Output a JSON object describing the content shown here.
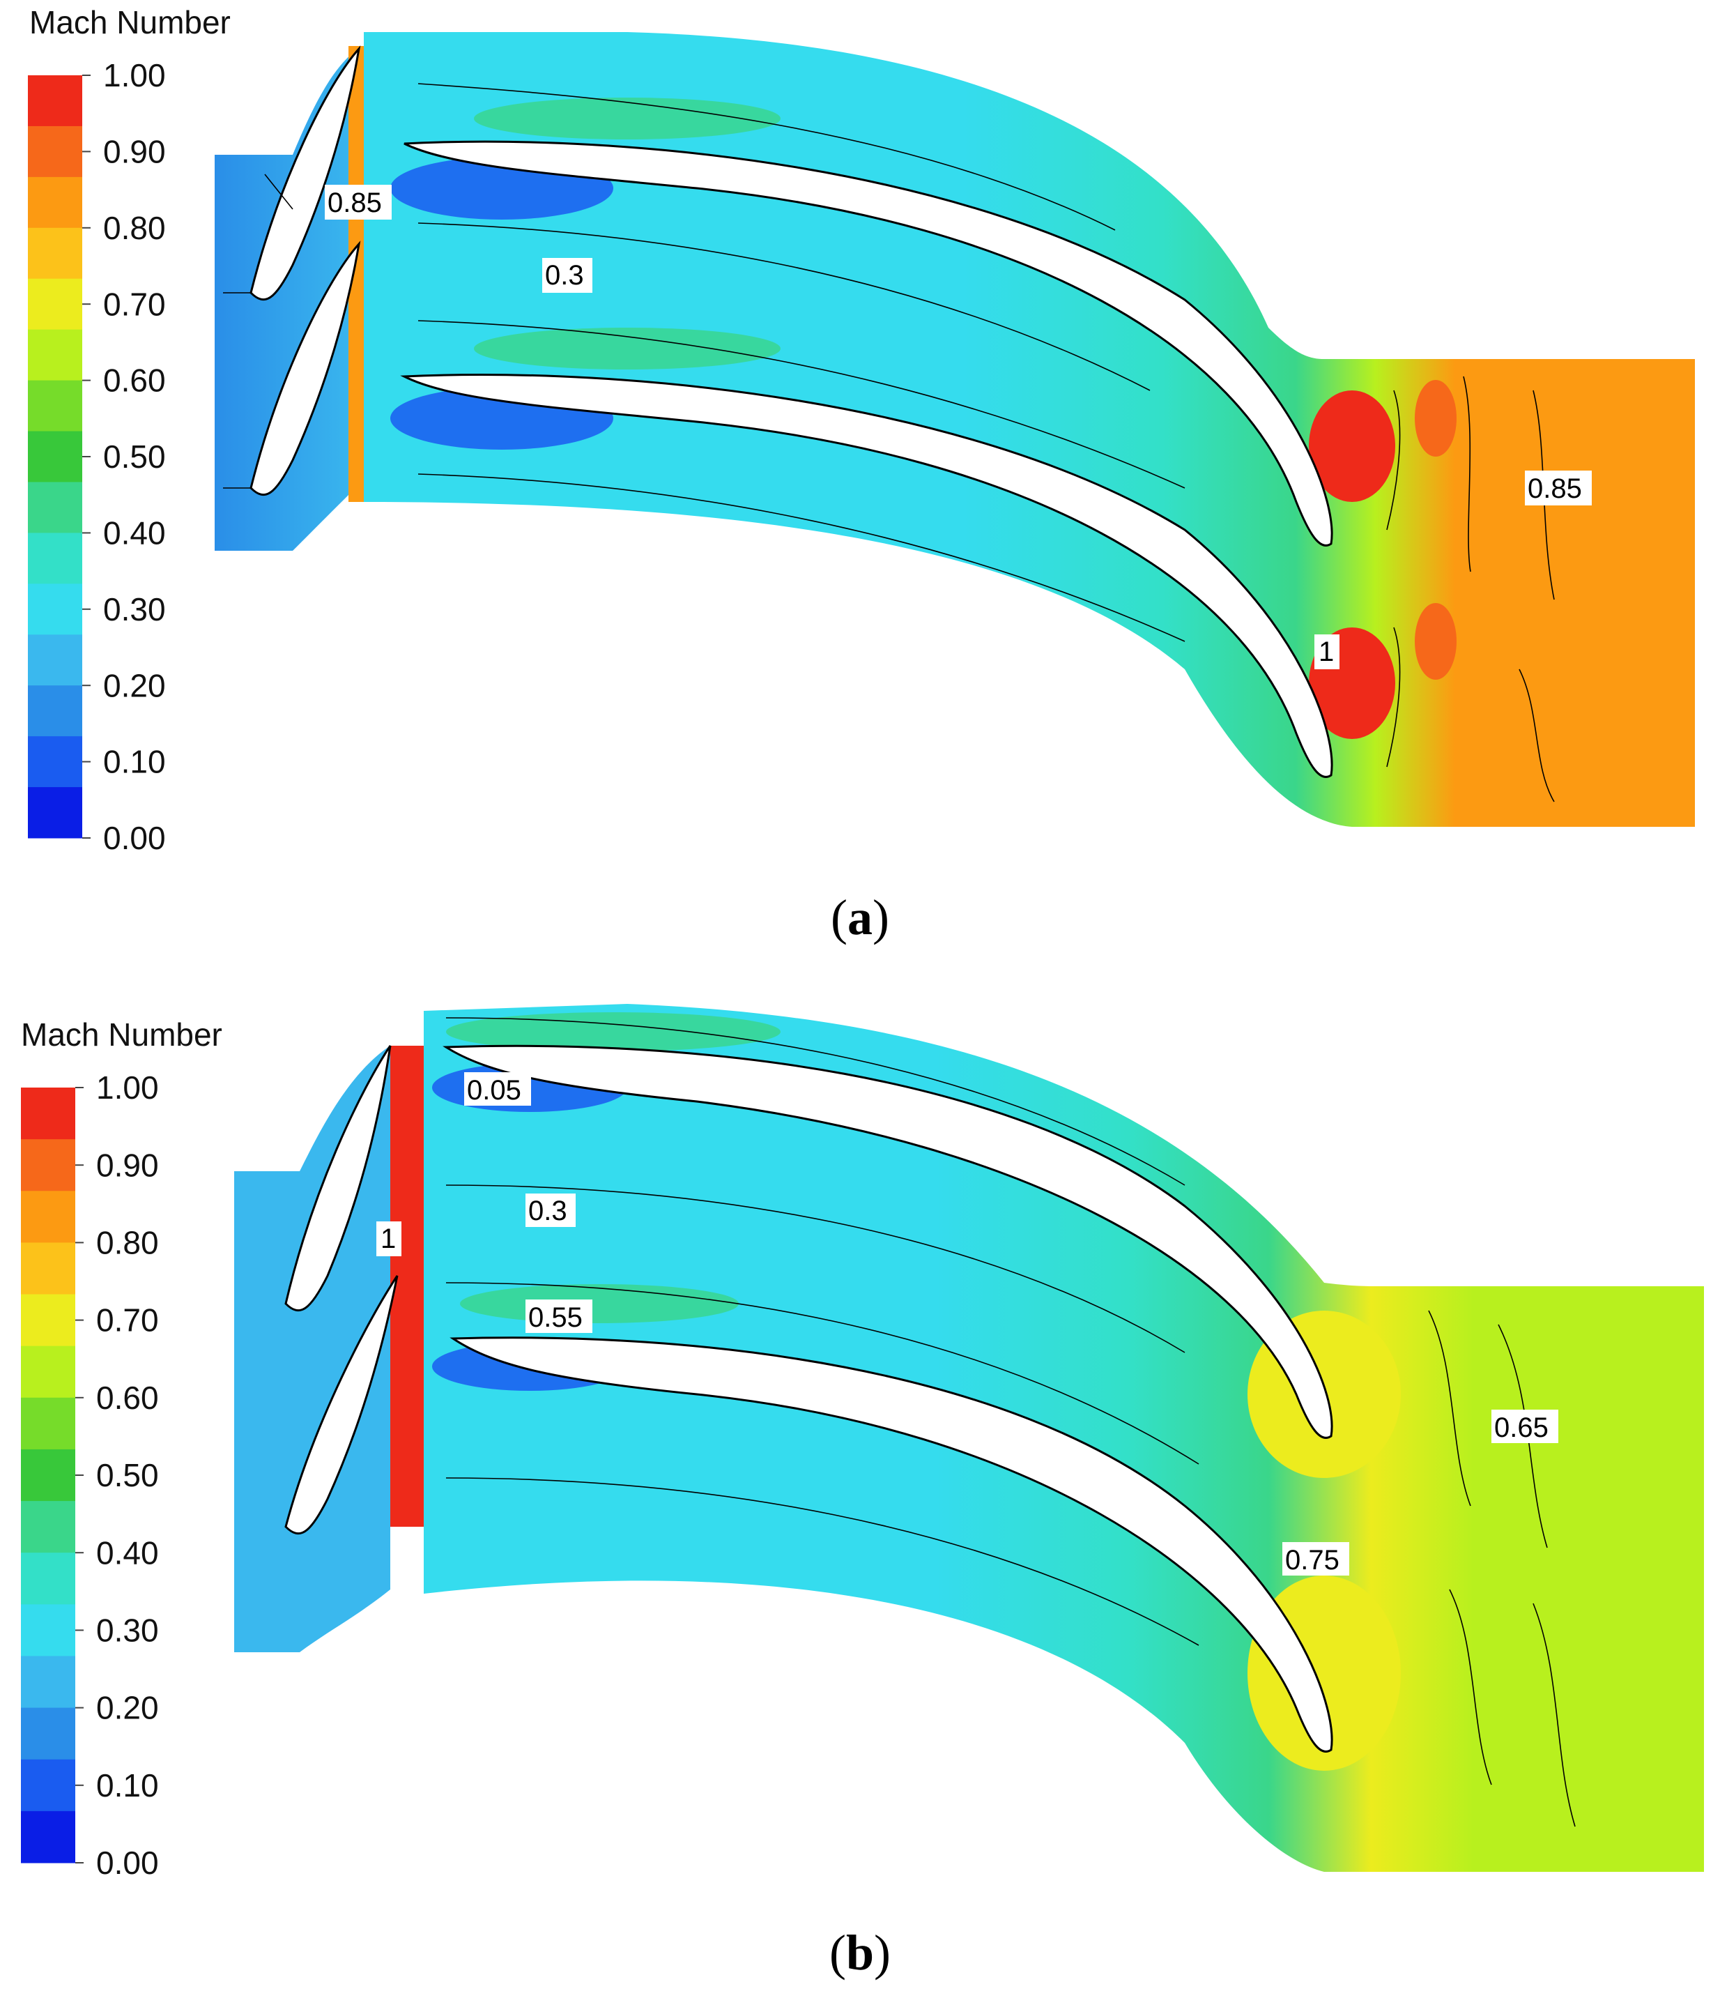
{
  "panels": [
    {
      "id": "a",
      "legend_title": "Mach Number",
      "legend_ticks": [
        "1.00",
        "0.90",
        "0.80",
        "0.70",
        "0.60",
        "0.50",
        "0.40",
        "0.30",
        "0.20",
        "0.10",
        "0.00"
      ],
      "contour_labels": [
        "0.85",
        "0.3",
        "0.85",
        "1"
      ],
      "caption": "a"
    },
    {
      "id": "b",
      "legend_title": "Mach Number",
      "legend_ticks": [
        "1.00",
        "0.90",
        "0.80",
        "0.70",
        "0.60",
        "0.50",
        "0.40",
        "0.30",
        "0.20",
        "0.10",
        "0.00"
      ],
      "contour_labels": [
        "0.05",
        "0.3",
        "1",
        "0.55",
        "0.65",
        "0.75"
      ],
      "caption": "b"
    }
  ],
  "colormap": [
    "#0a1ee6",
    "#1a5cf0",
    "#2a8ee8",
    "#3ab8ee",
    "#35dcee",
    "#33e0c8",
    "#3ad68a",
    "#38c83a",
    "#76dc2a",
    "#b8f01e",
    "#ecec1e",
    "#fcc21a",
    "#fc9a12",
    "#f6681a",
    "#ee2a1a"
  ]
}
